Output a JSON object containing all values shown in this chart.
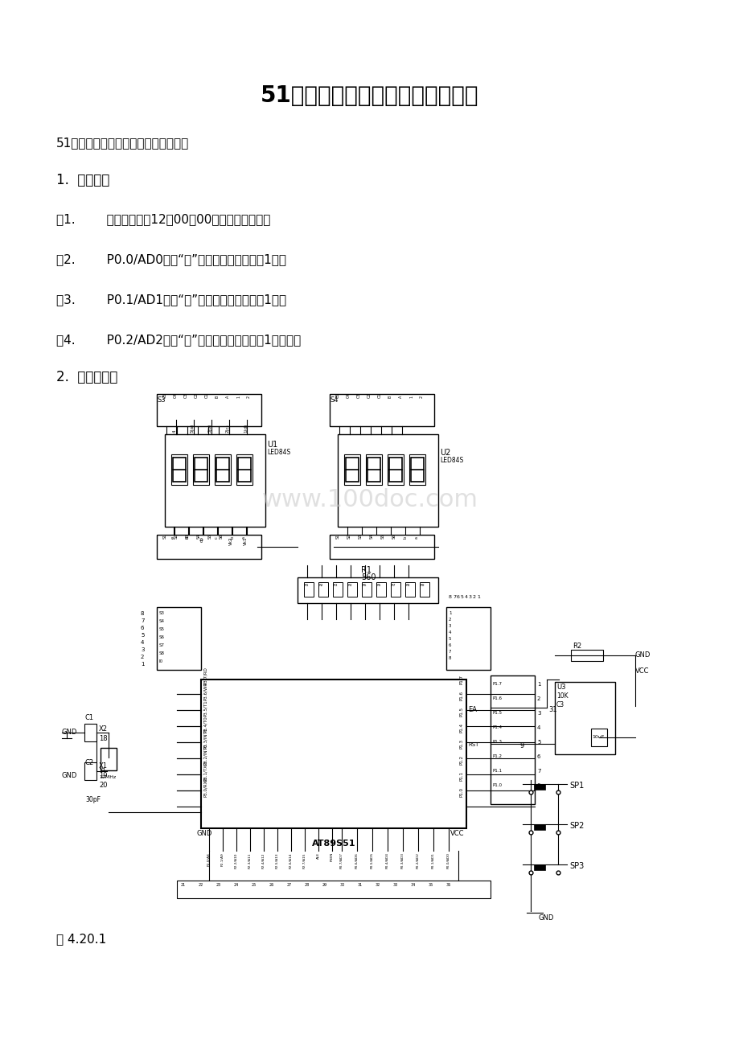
{
  "title": "51单片机数字钟实验原理图及程序",
  "subtitle": "51单片机数字钟实验（原理图及程序）",
  "section1": "1.  实验任务",
  "item1": "（1.        开机时，显示12：00：00的时间开始计时；",
  "item2": "（2.        P0.0/AD0控制“秒”的调整，每按一次加1秒；",
  "item3": "（3.        P0.1/AD1控制“分”的调整，每按一次加1分；",
  "item4": "（4.        P0.2/AD2控制“时”的调整，每按一次加1个小时；",
  "section2": "2.  电路原理图",
  "caption": "图 4.20.1",
  "bg_color": "#ffffff",
  "text_color": "#000000",
  "title_fontsize": 20,
  "body_fontsize": 11,
  "section_fontsize": 12,
  "watermark": "www.100doc.com"
}
